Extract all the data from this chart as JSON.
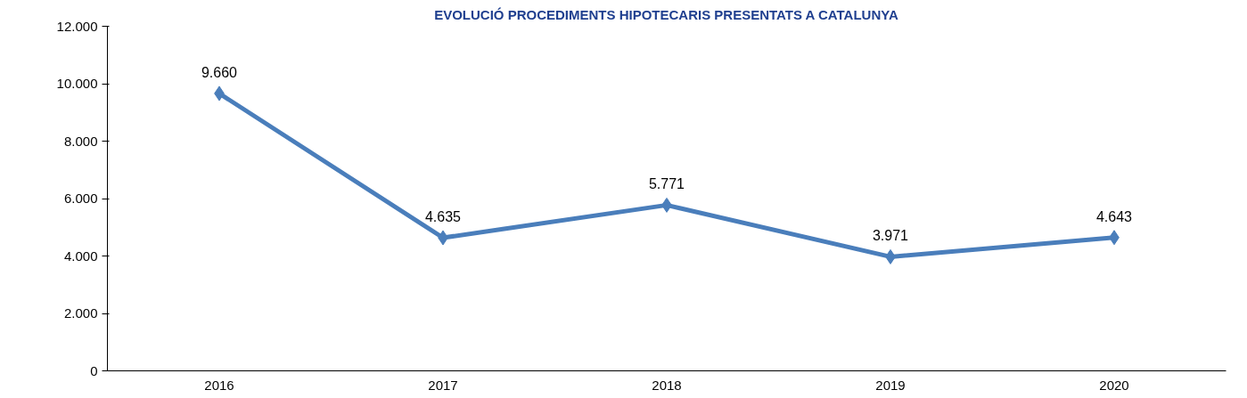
{
  "chart_data": {
    "type": "line",
    "title": "EVOLUCIÓ PROCEDIMENTS HIPOTECARIS PRESENTATS A CATALUNYA",
    "categories": [
      "2016",
      "2017",
      "2018",
      "2019",
      "2020"
    ],
    "series": [
      {
        "color": "#4a7ebb",
        "values": [
          9660,
          4635,
          5771,
          3971,
          4643
        ],
        "value_labels": [
          "9.660",
          "4.635",
          "5.771",
          "3.971",
          "4.643"
        ]
      }
    ],
    "ylim": [
      0,
      12000
    ],
    "yticks": [
      {
        "value": 0,
        "label": "0"
      },
      {
        "value": 2000,
        "label": "2.000"
      },
      {
        "value": 4000,
        "label": "4.000"
      },
      {
        "value": 6000,
        "label": "6.000"
      },
      {
        "value": 8000,
        "label": "8.000"
      },
      {
        "value": 10000,
        "label": "10.000"
      },
      {
        "value": 12000,
        "label": "12.000"
      }
    ],
    "grid": false,
    "marker": "diamond",
    "line_style": "solid"
  }
}
